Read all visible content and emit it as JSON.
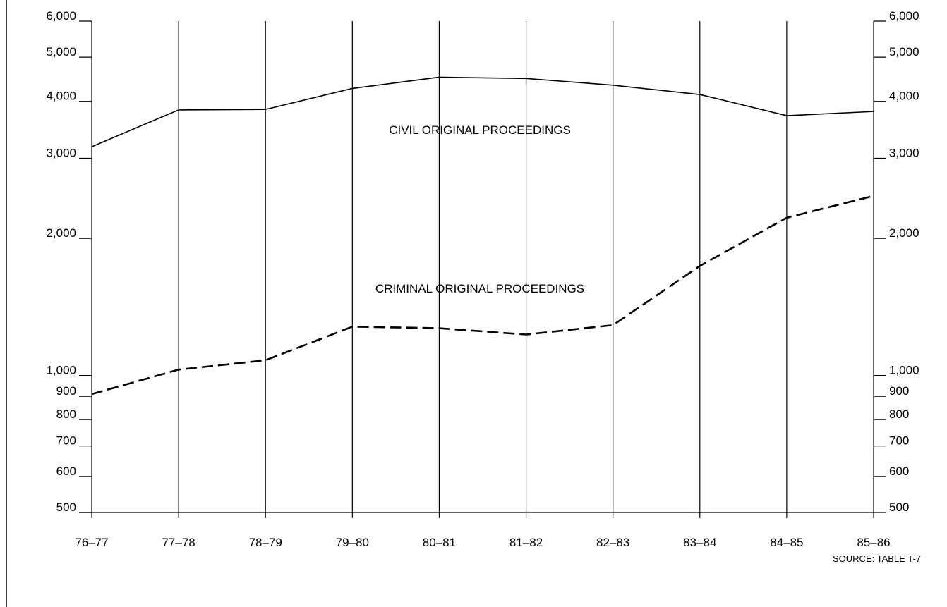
{
  "chart_data": {
    "type": "line",
    "y_scale": "log",
    "ylim": [
      500,
      6000
    ],
    "grid": "vertical",
    "categories": [
      "76-77",
      "77-78",
      "78-79",
      "79-80",
      "80-81",
      "81-82",
      "82-83",
      "83-84",
      "84-85",
      "85-86"
    ],
    "x_tick_labels": [
      "76–77",
      "77–78",
      "78–79",
      "79–80",
      "80–81",
      "81–82",
      "82–83",
      "83–84",
      "84–85",
      "85–86"
    ],
    "y_ticks": [
      {
        "value": 6000,
        "label": "6,000"
      },
      {
        "value": 5000,
        "label": "5,000"
      },
      {
        "value": 4000,
        "label": "4,000"
      },
      {
        "value": 3000,
        "label": "3,000"
      },
      {
        "value": 2000,
        "label": "2,000"
      },
      {
        "value": 1000,
        "label": "1,000"
      },
      {
        "value": 900,
        "label": "900"
      },
      {
        "value": 800,
        "label": "800"
      },
      {
        "value": 700,
        "label": "700"
      },
      {
        "value": 600,
        "label": "600"
      },
      {
        "value": 500,
        "label": "500"
      }
    ],
    "series": [
      {
        "name": "CIVIL ORIGINAL PROCEEDINGS",
        "style": "solid",
        "values": [
          3180,
          3830,
          3840,
          4270,
          4520,
          4490,
          4340,
          4140,
          3720,
          3800
        ]
      },
      {
        "name": "CRIMINAL ORIGINAL PROCEEDINGS",
        "style": "dashed",
        "values": [
          910,
          1030,
          1080,
          1280,
          1270,
          1230,
          1290,
          1740,
          2220,
          2480
        ]
      }
    ],
    "annotations": {
      "source": "SOURCE: TABLE T-7"
    }
  }
}
